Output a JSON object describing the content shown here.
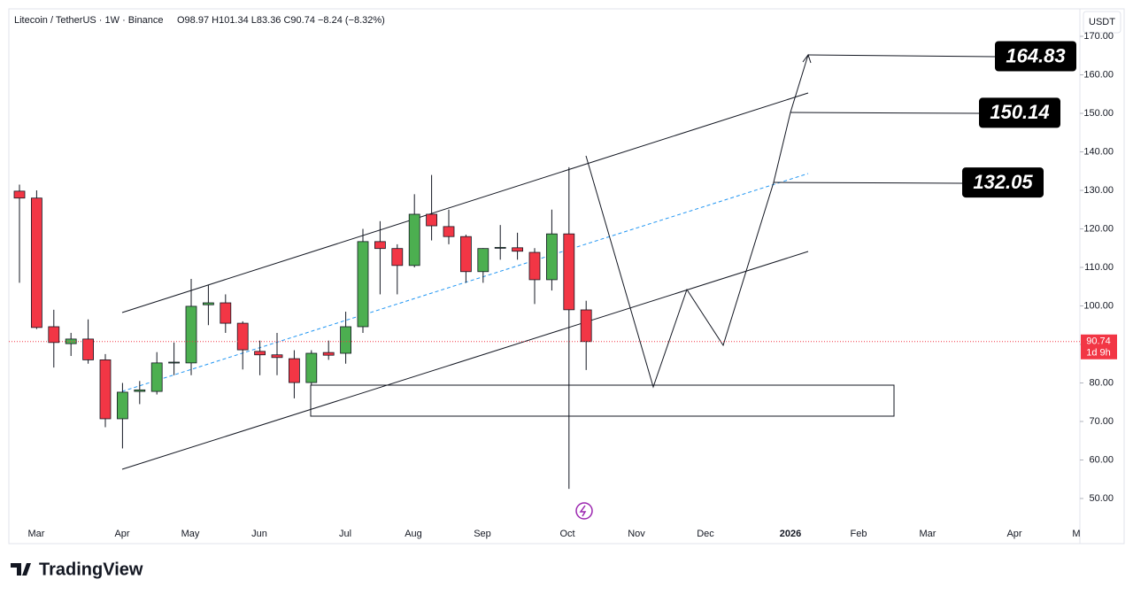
{
  "chart_data": {
    "type": "candlestick",
    "title": "Litecoin / TetherUS · 1W · Binance",
    "ohlc_label": "O98.97 H101.34 L83.36 C90.74 −8.24 (−8.32%)",
    "currency": "USDT",
    "last_price_label": {
      "value": 90.74,
      "label": "90.74"
    },
    "countdown": "1d 9h",
    "brand": "TradingView",
    "up_color": "#4caf50",
    "down_color": "#f23645",
    "open": [
      129.8,
      128,
      94.6,
      90.2,
      91.4,
      86,
      70.7,
      77.8,
      77.8,
      85.2,
      85.2,
      100.3,
      100.8,
      95.5,
      88.2,
      87.3,
      86.3,
      80.1,
      87.9,
      87.7,
      94.6,
      116.7,
      114.9,
      110.5,
      123.8,
      120.6,
      118,
      108.9,
      115,
      115.1,
      113.9,
      106.8,
      118.7,
      98.97
    ],
    "high": [
      131.5,
      130,
      99,
      93,
      96.5,
      87.5,
      80,
      80.5,
      88,
      90.5,
      107,
      105.5,
      103,
      96,
      91,
      93,
      88.5,
      88.5,
      91,
      98.5,
      120,
      122,
      116,
      129,
      134,
      125,
      118.5,
      115,
      121,
      119,
      115,
      125,
      136,
      101.34
    ],
    "low": [
      106,
      94,
      84,
      87,
      85,
      68.5,
      63,
      74.5,
      77,
      82,
      82,
      95,
      93,
      83.5,
      82,
      82,
      76,
      79.5,
      86,
      85,
      93,
      103,
      103,
      110,
      117,
      116,
      106,
      106,
      112,
      112,
      100.5,
      104,
      52.5,
      83.36
    ],
    "close": [
      128,
      94.4,
      90.5,
      91.4,
      86,
      70.7,
      77.6,
      78.2,
      85.2,
      85.4,
      99.9,
      100.8,
      95.5,
      88.6,
      87.3,
      86.6,
      80.1,
      87.7,
      87.2,
      94.6,
      116.7,
      114.9,
      110.5,
      123.8,
      120.8,
      118,
      108.9,
      114.9,
      115.2,
      114.2,
      106.8,
      118.7,
      99,
      90.74
    ],
    "xticks": [
      "Mar",
      "Apr",
      "May",
      "Jun",
      "Jul",
      "Aug",
      "Sep",
      "Oct",
      "Nov",
      "Dec",
      "2026",
      "Feb",
      "Mar",
      "Apr",
      "M"
    ],
    "ylim": [
      48,
      172
    ],
    "yticks": [
      {
        "value": 50,
        "label": "50.00"
      },
      {
        "value": 60,
        "label": "60.00"
      },
      {
        "value": 70,
        "label": "70.00"
      },
      {
        "value": 80,
        "label": "80.00"
      },
      {
        "value": 90,
        "label": "90.00"
      },
      {
        "value": 100,
        "label": "100.00"
      },
      {
        "value": 110,
        "label": "110.00"
      },
      {
        "value": 120,
        "label": "120.00"
      },
      {
        "value": 130,
        "label": "130.00"
      },
      {
        "value": 140,
        "label": "140.00"
      },
      {
        "value": 150,
        "label": "150.00"
      },
      {
        "value": 160,
        "label": "160.00"
      },
      {
        "value": 170,
        "label": "170.00"
      }
    ],
    "annotations": [
      {
        "value": 164.83,
        "label": "164.83"
      },
      {
        "value": 150.14,
        "label": "150.14"
      },
      {
        "value": 132.05,
        "label": "132.05"
      }
    ]
  }
}
